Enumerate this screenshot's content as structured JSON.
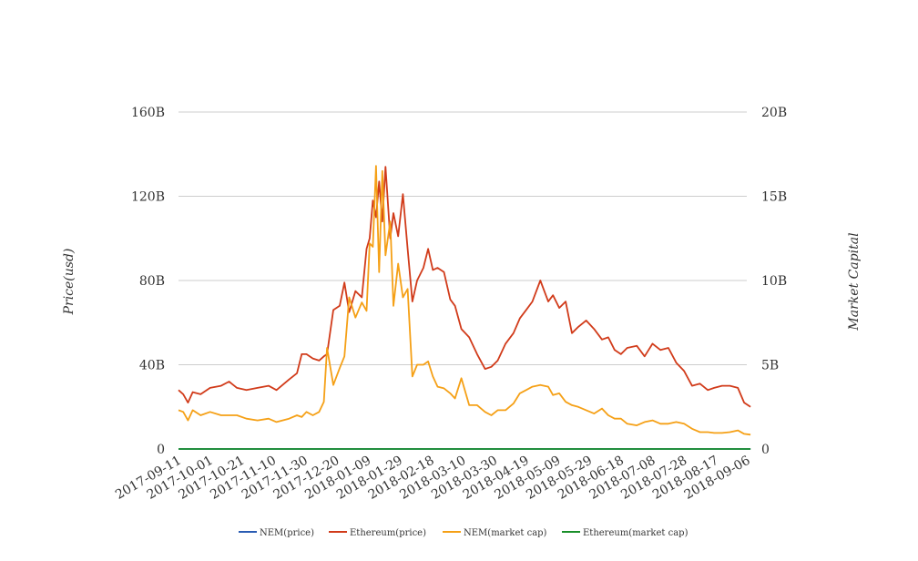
{
  "chart_data": {
    "type": "line",
    "title": "",
    "ylabel_left": "Price(usd)",
    "ylabel_right": "Market Capital",
    "ylim_left": [
      0,
      160000000000
    ],
    "ylim_right": [
      0,
      20000000000
    ],
    "left_ticks": [
      {
        "value": 0,
        "label": "0"
      },
      {
        "value": 40000000000,
        "label": "40B"
      },
      {
        "value": 80000000000,
        "label": "80B"
      },
      {
        "value": 120000000000,
        "label": "120B"
      },
      {
        "value": 160000000000,
        "label": "160B"
      }
    ],
    "right_ticks": [
      {
        "value": 0,
        "label": "0"
      },
      {
        "value": 5000000000,
        "label": "5B"
      },
      {
        "value": 10000000000,
        "label": "10B"
      },
      {
        "value": 15000000000,
        "label": "15B"
      },
      {
        "value": 20000000000,
        "label": "20B"
      }
    ],
    "x_ticks": [
      "2017-09-11",
      "2017-10-01",
      "2017-10-21",
      "2017-11-10",
      "2017-11-30",
      "2017-12-20",
      "2018-01-09",
      "2018-01-29",
      "2018-02-18",
      "2018-03-10",
      "2018-03-30",
      "2018-04-19",
      "2018-05-09",
      "2018-05-29",
      "2018-06-18",
      "2018-07-08",
      "2018-07-28",
      "2018-08-17",
      "2018-09-06"
    ],
    "grid": true,
    "legend_position": "bottom",
    "series": [
      {
        "name": "NEM(price)",
        "color": "#2a5cb3",
        "axis": "left",
        "x": [
          "2017-09-11",
          "2017-11-10",
          "2018-01-09",
          "2018-03-10",
          "2018-05-09",
          "2018-07-08",
          "2018-09-08"
        ],
        "y": [
          0.25,
          0.2,
          1.5,
          0.35,
          0.4,
          0.15,
          0.1
        ]
      },
      {
        "name": "Ethereum(price)",
        "color": "#d13b1a",
        "axis": "left",
        "x": [
          "2017-09-11",
          "2017-09-14",
          "2017-09-17",
          "2017-09-20",
          "2017-09-25",
          "2017-10-01",
          "2017-10-08",
          "2017-10-13",
          "2017-10-18",
          "2017-10-24",
          "2017-10-31",
          "2017-11-07",
          "2017-11-12",
          "2017-11-20",
          "2017-11-25",
          "2017-11-28",
          "2017-12-01",
          "2017-12-05",
          "2017-12-09",
          "2017-12-12",
          "2017-12-14",
          "2017-12-18",
          "2017-12-22",
          "2017-12-25",
          "2017-12-28",
          "2018-01-01",
          "2018-01-05",
          "2018-01-08",
          "2018-01-10",
          "2018-01-12",
          "2018-01-14",
          "2018-01-16",
          "2018-01-18",
          "2018-01-20",
          "2018-01-23",
          "2018-01-25",
          "2018-01-28",
          "2018-01-31",
          "2018-02-03",
          "2018-02-06",
          "2018-02-09",
          "2018-02-13",
          "2018-02-16",
          "2018-02-19",
          "2018-02-22",
          "2018-02-26",
          "2018-03-02",
          "2018-03-05",
          "2018-03-09",
          "2018-03-14",
          "2018-03-19",
          "2018-03-24",
          "2018-03-28",
          "2018-04-01",
          "2018-04-06",
          "2018-04-11",
          "2018-04-15",
          "2018-04-19",
          "2018-04-23",
          "2018-04-28",
          "2018-05-03",
          "2018-05-06",
          "2018-05-10",
          "2018-05-14",
          "2018-05-18",
          "2018-05-22",
          "2018-05-27",
          "2018-06-01",
          "2018-06-06",
          "2018-06-10",
          "2018-06-14",
          "2018-06-18",
          "2018-06-22",
          "2018-06-28",
          "2018-07-03",
          "2018-07-08",
          "2018-07-13",
          "2018-07-18",
          "2018-07-23",
          "2018-07-28",
          "2018-08-02",
          "2018-08-07",
          "2018-08-12",
          "2018-08-16",
          "2018-08-21",
          "2018-08-26",
          "2018-08-31",
          "2018-09-04",
          "2018-09-08"
        ],
        "y": [
          28000000000,
          26000000000,
          22000000000,
          27000000000,
          26000000000,
          29000000000,
          30000000000,
          32000000000,
          29000000000,
          28000000000,
          29000000000,
          30000000000,
          28000000000,
          33000000000,
          36000000000,
          45000000000,
          45000000000,
          43000000000,
          42000000000,
          44000000000,
          45000000000,
          66000000000,
          68000000000,
          79000000000,
          65000000000,
          75000000000,
          72000000000,
          95000000000,
          100000000000,
          118000000000,
          110000000000,
          127000000000,
          108000000000,
          134000000000,
          100000000000,
          112000000000,
          101000000000,
          121000000000,
          95000000000,
          70000000000,
          80000000000,
          86000000000,
          95000000000,
          85000000000,
          86000000000,
          84000000000,
          71000000000,
          68000000000,
          57000000000,
          53000000000,
          45000000000,
          38000000000,
          39000000000,
          42000000000,
          50000000000,
          55000000000,
          62000000000,
          66000000000,
          70000000000,
          80000000000,
          70000000000,
          73000000000,
          67000000000,
          70000000000,
          55000000000,
          58000000000,
          61000000000,
          57000000000,
          52000000000,
          53000000000,
          47000000000,
          45000000000,
          48000000000,
          49000000000,
          44000000000,
          50000000000,
          47000000000,
          48000000000,
          41000000000,
          37000000000,
          30000000000,
          31000000000,
          28000000000,
          29000000000,
          30000000000,
          30000000000,
          29000000000,
          22000000000,
          20000000000
        ]
      },
      {
        "name": "NEM(market cap)",
        "color": "#f5a016",
        "axis": "right",
        "x": [
          "2017-09-11",
          "2017-09-14",
          "2017-09-17",
          "2017-09-20",
          "2017-09-25",
          "2017-10-01",
          "2017-10-08",
          "2017-10-13",
          "2017-10-18",
          "2017-10-24",
          "2017-10-31",
          "2017-11-07",
          "2017-11-12",
          "2017-11-20",
          "2017-11-25",
          "2017-11-28",
          "2017-12-01",
          "2017-12-05",
          "2017-12-09",
          "2017-12-12",
          "2017-12-14",
          "2017-12-18",
          "2017-12-22",
          "2017-12-25",
          "2017-12-28",
          "2018-01-01",
          "2018-01-05",
          "2018-01-08",
          "2018-01-10",
          "2018-01-12",
          "2018-01-14",
          "2018-01-16",
          "2018-01-18",
          "2018-01-20",
          "2018-01-23",
          "2018-01-25",
          "2018-01-28",
          "2018-01-31",
          "2018-02-03",
          "2018-02-06",
          "2018-02-09",
          "2018-02-13",
          "2018-02-16",
          "2018-02-19",
          "2018-02-22",
          "2018-02-26",
          "2018-03-02",
          "2018-03-05",
          "2018-03-09",
          "2018-03-14",
          "2018-03-19",
          "2018-03-24",
          "2018-03-28",
          "2018-04-01",
          "2018-04-06",
          "2018-04-11",
          "2018-04-15",
          "2018-04-19",
          "2018-04-23",
          "2018-04-28",
          "2018-05-03",
          "2018-05-06",
          "2018-05-10",
          "2018-05-14",
          "2018-05-18",
          "2018-05-22",
          "2018-05-27",
          "2018-06-01",
          "2018-06-06",
          "2018-06-10",
          "2018-06-14",
          "2018-06-18",
          "2018-06-22",
          "2018-06-28",
          "2018-07-03",
          "2018-07-08",
          "2018-07-13",
          "2018-07-18",
          "2018-07-23",
          "2018-07-28",
          "2018-08-02",
          "2018-08-07",
          "2018-08-12",
          "2018-08-16",
          "2018-08-21",
          "2018-08-26",
          "2018-08-31",
          "2018-09-04",
          "2018-09-08"
        ],
        "y": [
          2300000000,
          2200000000,
          1700000000,
          2300000000,
          2000000000,
          2200000000,
          2000000000,
          2000000000,
          2000000000,
          1800000000,
          1700000000,
          1800000000,
          1600000000,
          1800000000,
          2000000000,
          1900000000,
          2200000000,
          2000000000,
          2200000000,
          2800000000,
          6000000000,
          3800000000,
          4800000000,
          5500000000,
          9000000000,
          7800000000,
          8700000000,
          8200000000,
          12200000000,
          12000000000,
          16800000000,
          10500000000,
          16500000000,
          11500000000,
          13500000000,
          8500000000,
          11000000000,
          9000000000,
          9500000000,
          4300000000,
          5000000000,
          5000000000,
          5200000000,
          4300000000,
          3700000000,
          3600000000,
          3300000000,
          3000000000,
          4200000000,
          2600000000,
          2600000000,
          2200000000,
          2000000000,
          2300000000,
          2300000000,
          2700000000,
          3300000000,
          3500000000,
          3700000000,
          3800000000,
          3700000000,
          3200000000,
          3300000000,
          2800000000,
          2600000000,
          2500000000,
          2300000000,
          2100000000,
          2400000000,
          2000000000,
          1800000000,
          1800000000,
          1500000000,
          1400000000,
          1600000000,
          1700000000,
          1500000000,
          1500000000,
          1600000000,
          1500000000,
          1200000000,
          1000000000,
          1000000000,
          950000000,
          950000000,
          1000000000,
          1100000000,
          900000000,
          850000000
        ]
      },
      {
        "name": "Ethereum(market cap)",
        "color": "#1a8f2a",
        "axis": "right",
        "x": [
          "2017-09-11",
          "2017-11-10",
          "2018-01-09",
          "2018-03-10",
          "2018-05-09",
          "2018-07-08",
          "2018-09-08"
        ],
        "y": [
          300,
          350,
          1300,
          700,
          650,
          450,
          250
        ]
      }
    ]
  }
}
